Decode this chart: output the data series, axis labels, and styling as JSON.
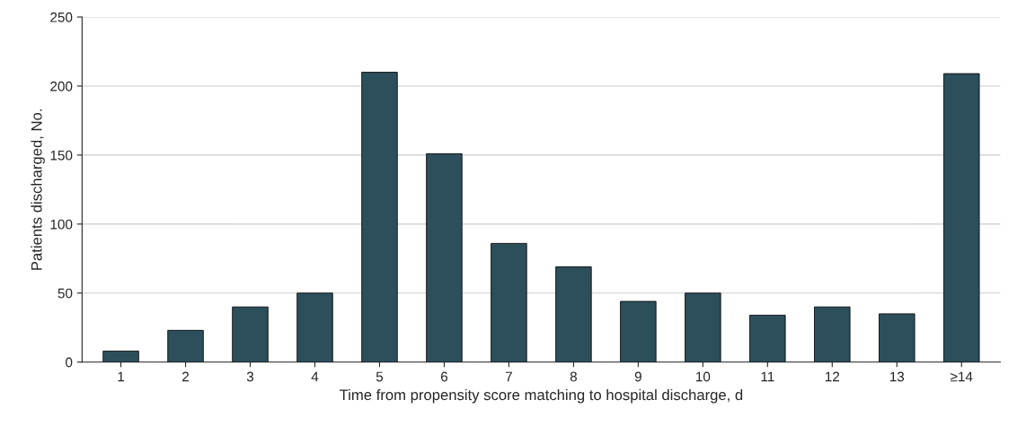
{
  "chart_data": {
    "type": "bar",
    "xlabel": "Time from propensity score matching to hospital discharge, d",
    "ylabel": "Patients discharged, No.",
    "categories": [
      "1",
      "2",
      "3",
      "4",
      "5",
      "6",
      "7",
      "8",
      "9",
      "10",
      "11",
      "12",
      "13",
      "≥14"
    ],
    "values": [
      8,
      23,
      40,
      50,
      210,
      151,
      86,
      69,
      44,
      50,
      34,
      40,
      35,
      209
    ],
    "color": "#2d4f5c",
    "ylim": [
      0,
      250
    ],
    "yticks": [
      0,
      50,
      100,
      150,
      200,
      250
    ],
    "grid": "y"
  }
}
